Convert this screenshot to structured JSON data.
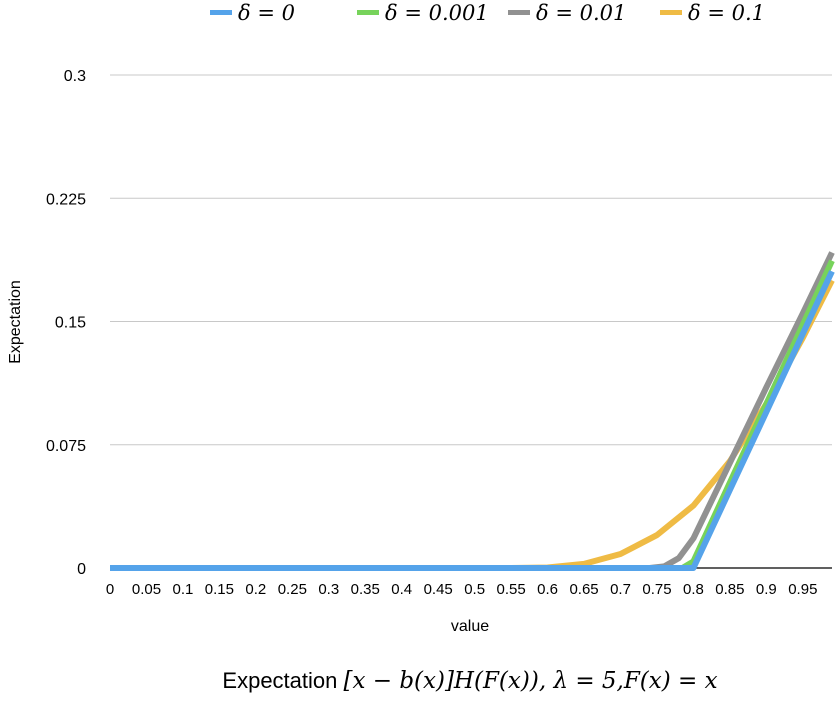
{
  "chart_data": {
    "type": "line",
    "title": "",
    "caption": {
      "prefix": "Expectation ",
      "math": "[x − b(x)]H(F(x)), λ = 5,F(x) = x"
    },
    "xlabel": "value",
    "ylabel": "Expectation",
    "y_ticks": [
      "0",
      "0.075",
      "0.15",
      "0.225",
      "0.3"
    ],
    "ylim": [
      0,
      0.3
    ],
    "xlim": [
      0,
      0.99
    ],
    "x_ticks": [
      "0",
      "0.05",
      "0.1",
      "0.15",
      "0.2",
      "0.25",
      "0.3",
      "0.35",
      "0.4",
      "0.45",
      "0.5",
      "0.55",
      "0.6",
      "0.65",
      "0.7",
      "0.75",
      "0.8",
      "0.85",
      "0.9",
      "0.95"
    ],
    "grid": "horizontal",
    "legend_position": "top",
    "series": [
      {
        "name": "δ = 0",
        "color": "#55a3ea",
        "x": [
          0,
          0.1,
          0.2,
          0.3,
          0.4,
          0.5,
          0.6,
          0.7,
          0.75,
          0.8,
          0.85,
          0.9,
          0.95,
          0.99
        ],
        "y": [
          0,
          0,
          0,
          0,
          0,
          0,
          0,
          0,
          0,
          0,
          0.0475,
          0.095,
          0.1425,
          0.1805
        ]
      },
      {
        "name": "δ = 0.001",
        "color": "#77d35b",
        "x": [
          0,
          0.1,
          0.2,
          0.3,
          0.4,
          0.5,
          0.6,
          0.7,
          0.75,
          0.785,
          0.8,
          0.85,
          0.9,
          0.95,
          0.99
        ],
        "y": [
          0,
          0,
          0,
          0,
          0,
          0,
          0,
          0,
          0,
          0,
          0.004,
          0.052,
          0.1,
          0.148,
          0.187
        ]
      },
      {
        "name": "δ = 0.01",
        "color": "#919191",
        "x": [
          0,
          0.1,
          0.2,
          0.3,
          0.4,
          0.5,
          0.6,
          0.7,
          0.74,
          0.76,
          0.78,
          0.8,
          0.85,
          0.9,
          0.95,
          0.99
        ],
        "y": [
          0,
          0,
          0,
          0,
          0,
          0,
          0,
          0,
          0,
          0.001,
          0.006,
          0.018,
          0.064,
          0.11,
          0.155,
          0.192
        ]
      },
      {
        "name": "δ = 0.1",
        "color": "#efbb45",
        "x": [
          0,
          0.1,
          0.2,
          0.3,
          0.4,
          0.5,
          0.55,
          0.6,
          0.65,
          0.7,
          0.75,
          0.8,
          0.85,
          0.9,
          0.95,
          0.99
        ],
        "y": [
          0,
          0,
          0,
          0,
          0,
          0,
          0,
          0.0003,
          0.0025,
          0.0085,
          0.02,
          0.038,
          0.065,
          0.1,
          0.14,
          0.175
        ]
      }
    ]
  }
}
